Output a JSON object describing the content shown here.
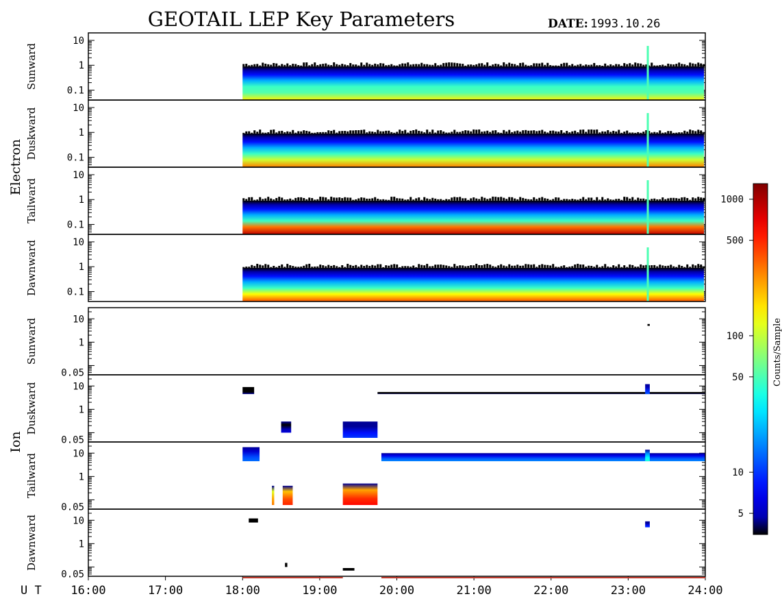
{
  "chart_data": {
    "type": "heatmap",
    "title": "GEOTAIL LEP Key Parameters",
    "date_label": "DATE:",
    "date": "1993.10.26",
    "time_axis_label": "U T",
    "time_range_hours": [
      16,
      24
    ],
    "time_ticks": [
      "16:00",
      "17:00",
      "18:00",
      "19:00",
      "20:00",
      "21:00",
      "22:00",
      "23:00",
      "24:00"
    ],
    "colorbar": {
      "label": "Counts/Sample",
      "scale": "log",
      "range": [
        3.5,
        1300
      ],
      "ticks": [
        {
          "value": 5,
          "label": "5"
        },
        {
          "value": 10,
          "label": "10"
        },
        {
          "value": 50,
          "label": "50"
        },
        {
          "value": 100,
          "label": "100"
        },
        {
          "value": 500,
          "label": "500"
        },
        {
          "value": 1000,
          "label": "1000"
        }
      ]
    },
    "groups": [
      {
        "name": "Electron",
        "y_scale": "log",
        "y_range": [
          0.04,
          20
        ],
        "y_ticks": [
          "10",
          "1",
          "0.1"
        ],
        "panels": [
          {
            "name": "Sunward",
            "data_start_ut": 18.0,
            "upper_edge_energy": 0.9,
            "peak_intensity": 150
          },
          {
            "name": "Duskward",
            "data_start_ut": 18.0,
            "upper_edge_energy": 0.9,
            "peak_intensity": 300
          },
          {
            "name": "Tailward",
            "data_start_ut": 18.0,
            "upper_edge_energy": 0.9,
            "peak_intensity": 900
          },
          {
            "name": "Dawnward",
            "data_start_ut": 18.0,
            "upper_edge_energy": 0.9,
            "peak_intensity": 400
          }
        ]
      },
      {
        "name": "Ion",
        "y_scale": "log",
        "y_range": [
          0.04,
          30
        ],
        "y_ticks": [
          "10",
          "1",
          "0.05"
        ],
        "panels": [
          {
            "name": "Sunward",
            "blocks": [
              {
                "t0": 23.25,
                "t1": 23.28,
                "e_low": 5,
                "e_high": 6,
                "intensity": 3
              }
            ]
          },
          {
            "name": "Duskward",
            "blocks": [
              {
                "t0": 18.0,
                "t1": 18.15,
                "e_low": 4.5,
                "e_high": 9,
                "intensity": 4
              },
              {
                "t0": 18.5,
                "t1": 18.63,
                "e_low": 0.1,
                "e_high": 0.3,
                "intensity": 6
              },
              {
                "t0": 19.3,
                "t1": 19.75,
                "e_low": 0.06,
                "e_high": 0.3,
                "intensity": 10
              },
              {
                "t0": 19.75,
                "t1": 24.0,
                "e_low": 4.5,
                "e_high": 5.5,
                "intensity": 4
              },
              {
                "t0": 23.22,
                "t1": 23.28,
                "e_low": 4.5,
                "e_high": 12,
                "intensity": 12
              }
            ]
          },
          {
            "name": "Tailward",
            "blocks": [
              {
                "t0": 18.0,
                "t1": 18.22,
                "e_low": 4.5,
                "e_high": 18,
                "intensity": 14
              },
              {
                "t0": 18.38,
                "t1": 18.41,
                "e_low": 0.06,
                "e_high": 0.4,
                "intensity": 300
              },
              {
                "t0": 18.52,
                "t1": 18.65,
                "e_low": 0.06,
                "e_high": 0.4,
                "intensity": 500
              },
              {
                "t0": 19.3,
                "t1": 19.75,
                "e_low": 0.06,
                "e_high": 0.5,
                "intensity": 600
              },
              {
                "t0": 19.8,
                "t1": 24.0,
                "e_low": 4.5,
                "e_high": 10,
                "intensity": 16
              },
              {
                "t0": 23.22,
                "t1": 23.28,
                "e_low": 4.5,
                "e_high": 14,
                "intensity": 40
              }
            ]
          },
          {
            "name": "Dawnward",
            "blocks": [
              {
                "t0": 18.08,
                "t1": 18.2,
                "e_low": 8,
                "e_high": 12,
                "intensity": 3
              },
              {
                "t0": 18.55,
                "t1": 18.58,
                "e_low": 0.1,
                "e_high": 0.15,
                "intensity": 3
              },
              {
                "t0": 19.3,
                "t1": 19.45,
                "e_low": 0.07,
                "e_high": 0.09,
                "intensity": 3
              },
              {
                "t0": 23.22,
                "t1": 23.28,
                "e_low": 5,
                "e_high": 9,
                "intensity": 10
              }
            ]
          }
        ]
      }
    ],
    "bottom_status_bar": [
      {
        "t0": 18.0,
        "t1": 19.3,
        "status": "flagged"
      },
      {
        "t0": 19.8,
        "t1": 24.0,
        "status": "flagged"
      }
    ],
    "colors": {
      "status_bar": "#c0392b",
      "frame": "#000000"
    }
  }
}
